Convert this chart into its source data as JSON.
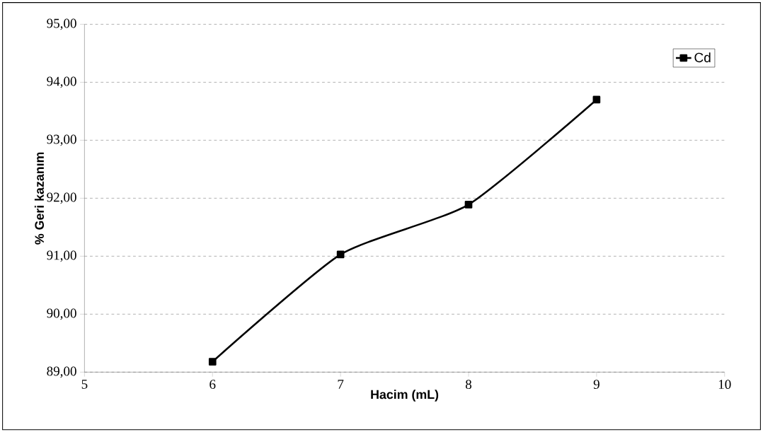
{
  "chart_data": {
    "type": "line",
    "xlabel": "Hacim (mL)",
    "ylabel": "% Geri kazanım",
    "x": [
      6,
      7,
      8,
      9
    ],
    "series": [
      {
        "name": "Cd",
        "color": "#000000",
        "values": [
          89.18,
          91.03,
          91.89,
          93.7
        ]
      }
    ],
    "xlim": [
      5,
      10
    ],
    "xticks": [
      5,
      6,
      7,
      8,
      9,
      10
    ],
    "ylim": [
      89,
      95
    ],
    "yticks": [
      {
        "value": 89,
        "label": "89,00"
      },
      {
        "value": 90,
        "label": "90,00"
      },
      {
        "value": 91,
        "label": "91,00"
      },
      {
        "value": 92,
        "label": "92,00"
      },
      {
        "value": 93,
        "label": "93,00"
      },
      {
        "value": 94,
        "label": "94,00"
      },
      {
        "value": 95,
        "label": "95,00"
      }
    ],
    "grid": "y",
    "legend": "top right",
    "marker": "square",
    "line_style": "solid"
  }
}
